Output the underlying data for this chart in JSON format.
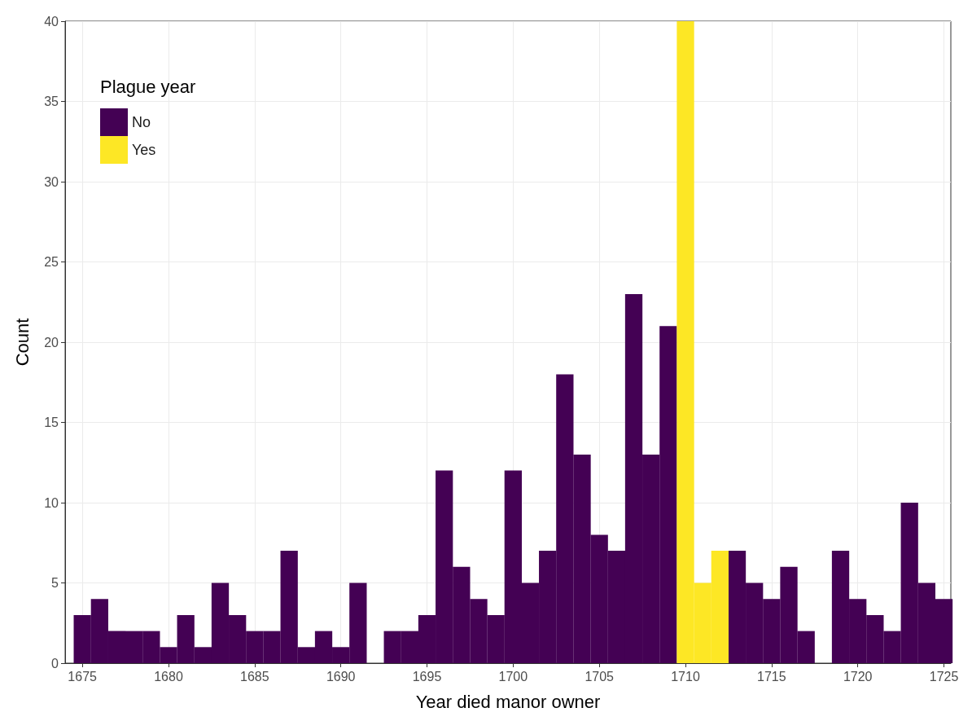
{
  "chart_data": {
    "type": "histogram",
    "xlabel": "Year died manor owner",
    "ylabel": "Count",
    "legend_title": "Plague year",
    "bins": [
      1674.5,
      1675.5,
      1676.5,
      1677.5,
      1678.5,
      1679.5,
      1680.5,
      1681.5,
      1682.5,
      1683.5,
      1684.5,
      1685.5,
      1686.5,
      1687.5,
      1688.5,
      1689.5,
      1690.5,
      1691.5,
      1692.5,
      1693.5,
      1694.5,
      1695.5,
      1696.5,
      1697.5,
      1698.5,
      1699.5,
      1700.5,
      1701.5,
      1702.5,
      1703.5,
      1704.5,
      1705.5,
      1706.5,
      1707.5,
      1708.5,
      1709.5,
      1710.5,
      1711.5,
      1712.5,
      1713.5,
      1714.5,
      1715.5,
      1716.5,
      1717.5,
      1718.5,
      1719.5,
      1720.5,
      1721.5,
      1722.5,
      1723.5,
      1724.5,
      1725.5
    ],
    "series": [
      {
        "name": "No",
        "color": "#440154",
        "values": [
          3,
          4,
          2,
          2,
          2,
          1,
          3,
          1,
          5,
          3,
          2,
          2,
          7,
          1,
          2,
          1,
          5,
          0,
          2,
          2,
          3,
          12,
          6,
          4,
          3,
          12,
          5,
          7,
          18,
          13,
          8,
          7,
          23,
          13,
          21,
          0,
          0,
          0,
          7,
          5,
          4,
          6,
          2,
          0,
          7,
          4,
          3,
          2,
          10,
          5,
          4
        ]
      },
      {
        "name": "Yes",
        "color": "#fde725",
        "values": [
          0,
          0,
          0,
          0,
          0,
          0,
          0,
          0,
          0,
          0,
          0,
          0,
          0,
          0,
          0,
          0,
          0,
          0,
          0,
          0,
          0,
          0,
          0,
          0,
          0,
          0,
          0,
          0,
          0,
          0,
          0,
          0,
          0,
          0,
          0,
          40,
          5,
          7,
          0,
          0,
          0,
          0,
          0,
          0,
          0,
          0,
          0,
          0,
          0,
          0,
          0
        ]
      }
    ],
    "xlim": [
      1674,
      1725.4
    ],
    "xticks": [
      1675,
      1680,
      1685,
      1690,
      1695,
      1700,
      1705,
      1710,
      1715,
      1720,
      1725
    ],
    "ylim": [
      0,
      40
    ],
    "yticks": [
      0,
      5,
      10,
      15,
      20,
      25,
      30,
      35,
      40
    ],
    "grid": true,
    "legend": "top left"
  }
}
